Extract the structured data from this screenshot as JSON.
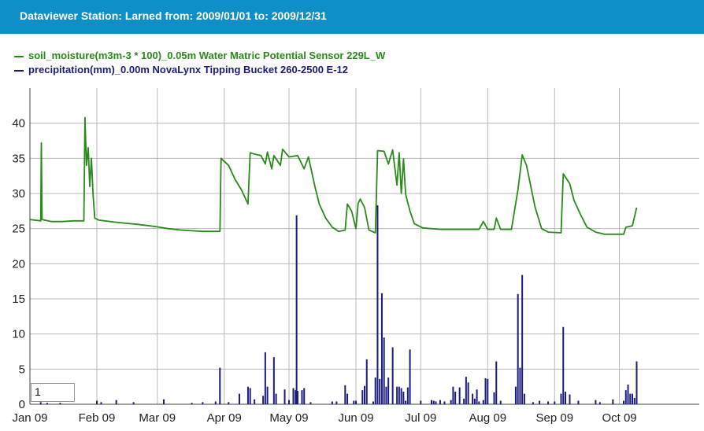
{
  "header": {
    "title": "Dataviewer Station: Larned from: 2009/01/01 to: 2009/12/31"
  },
  "zoom_input": {
    "value": "1"
  },
  "chart_data": {
    "type": "line",
    "title": "",
    "legend_placement": "top-left",
    "grid": true,
    "xlabel": "",
    "ylabel": "",
    "ylim": [
      0,
      45
    ],
    "xlim": [
      0,
      310
    ],
    "x_ticks": [
      {
        "label": "Jan 09",
        "day": 0
      },
      {
        "label": "Feb 09",
        "day": 31
      },
      {
        "label": "Mar 09",
        "day": 59
      },
      {
        "label": "Apr 09",
        "day": 90
      },
      {
        "label": "May 09",
        "day": 120
      },
      {
        "label": "Jun 09",
        "day": 151
      },
      {
        "label": "Jul 09",
        "day": 181
      },
      {
        "label": "Aug 09",
        "day": 212
      },
      {
        "label": "Sep 09",
        "day": 243
      },
      {
        "label": "Oct 09",
        "day": 273
      }
    ],
    "y_ticks": [
      0,
      5,
      10,
      15,
      20,
      25,
      30,
      35,
      40
    ],
    "series": [
      {
        "name": "soil_moisture(m3m-3 * 100)_0.05m Water Matric Potential Sensor 229L_W",
        "color": "#2a8a1c",
        "kind": "line",
        "points": [
          [
            0,
            26.3
          ],
          [
            5,
            26.1
          ],
          [
            5.3,
            37.2
          ],
          [
            5.6,
            26.3
          ],
          [
            10,
            26.0
          ],
          [
            15,
            26.0
          ],
          [
            20,
            26.1
          ],
          [
            25,
            26.1
          ],
          [
            25.5,
            40.8
          ],
          [
            26.2,
            34
          ],
          [
            27,
            36.5
          ],
          [
            27.7,
            31
          ],
          [
            28.5,
            35
          ],
          [
            29.2,
            30
          ],
          [
            30,
            26.5
          ],
          [
            32,
            26.2
          ],
          [
            40,
            25.9
          ],
          [
            50,
            25.6
          ],
          [
            58,
            25.3
          ],
          [
            64,
            25.0
          ],
          [
            70,
            24.8
          ],
          [
            80,
            24.6
          ],
          [
            88,
            24.6
          ],
          [
            88.5,
            35
          ],
          [
            92,
            34
          ],
          [
            95,
            32
          ],
          [
            98,
            30.5
          ],
          [
            101,
            28.5
          ],
          [
            102,
            35.8
          ],
          [
            104,
            35.6
          ],
          [
            107,
            35.4
          ],
          [
            109,
            34.2
          ],
          [
            110,
            35.9
          ],
          [
            112,
            33.5
          ],
          [
            113,
            35.4
          ],
          [
            116,
            34
          ],
          [
            117,
            36.3
          ],
          [
            120,
            35.2
          ],
          [
            124,
            35.4
          ],
          [
            127,
            33.5
          ],
          [
            129,
            35.2
          ],
          [
            132,
            31
          ],
          [
            134,
            28.5
          ],
          [
            137,
            26.5
          ],
          [
            140,
            25.2
          ],
          [
            143,
            24.6
          ],
          [
            146,
            24.8
          ],
          [
            147,
            28.5
          ],
          [
            149,
            27.5
          ],
          [
            151,
            25
          ],
          [
            152,
            28.6
          ],
          [
            153,
            29.2
          ],
          [
            155,
            28
          ],
          [
            157,
            24.8
          ],
          [
            160,
            24.4
          ],
          [
            161,
            36.1
          ],
          [
            164,
            36
          ],
          [
            166,
            34.2
          ],
          [
            168,
            36.2
          ],
          [
            170,
            31.2
          ],
          [
            171,
            35.8
          ],
          [
            172,
            30
          ],
          [
            173,
            34.9
          ],
          [
            174,
            29.9
          ],
          [
            175,
            28.7
          ],
          [
            176,
            27.5
          ],
          [
            178,
            25.7
          ],
          [
            182,
            25.1
          ],
          [
            190,
            24.9
          ],
          [
            200,
            24.9
          ],
          [
            208,
            24.9
          ],
          [
            210,
            26
          ],
          [
            212,
            24.9
          ],
          [
            215,
            24.9
          ],
          [
            216,
            26.5
          ],
          [
            218,
            24.9
          ],
          [
            223,
            24.9
          ],
          [
            226,
            30.5
          ],
          [
            228,
            35.5
          ],
          [
            230,
            34
          ],
          [
            232,
            31
          ],
          [
            234,
            28
          ],
          [
            237,
            25
          ],
          [
            240,
            24.5
          ],
          [
            246,
            24.4
          ],
          [
            247,
            32.8
          ],
          [
            250,
            31.4
          ],
          [
            252,
            29
          ],
          [
            255,
            27
          ],
          [
            258,
            25.2
          ],
          [
            262,
            24.5
          ],
          [
            266,
            24.2
          ],
          [
            272,
            24.2
          ],
          [
            275,
            24.2
          ],
          [
            276,
            25.2
          ],
          [
            279,
            25.4
          ],
          [
            281,
            28
          ]
        ]
      },
      {
        "name": "precipitation(mm)_0.00m NovaLynx Tipping Bucket 260-2500 E-12",
        "color": "#1c1c7c",
        "kind": "bars",
        "points": [
          [
            5,
            0.3
          ],
          [
            8,
            0.2
          ],
          [
            14,
            0.2
          ],
          [
            31,
            0.5
          ],
          [
            33,
            0.3
          ],
          [
            40,
            0.6
          ],
          [
            48,
            0.3
          ],
          [
            62,
            0.7
          ],
          [
            75,
            0.2
          ],
          [
            80,
            0.3
          ],
          [
            86,
            0.4
          ],
          [
            88,
            5.2
          ],
          [
            92,
            0.3
          ],
          [
            97,
            1.5
          ],
          [
            101,
            2.5
          ],
          [
            102,
            2.3
          ],
          [
            104,
            0.7
          ],
          [
            108,
            1.2
          ],
          [
            109,
            7.4
          ],
          [
            110,
            2.5
          ],
          [
            113,
            6.7
          ],
          [
            114,
            1.5
          ],
          [
            118,
            2.1
          ],
          [
            120,
            0.6
          ],
          [
            122,
            2.3
          ],
          [
            123,
            2.0
          ],
          [
            124,
            1.9
          ],
          [
            126,
            2.0
          ],
          [
            127,
            2.3
          ],
          [
            130,
            0.3
          ],
          [
            123.5,
            26.9
          ],
          [
            140,
            0.4
          ],
          [
            142,
            0.4
          ],
          [
            146,
            2.7
          ],
          [
            147,
            1.5
          ],
          [
            150,
            0.5
          ],
          [
            151,
            0.5
          ],
          [
            154,
            2.0
          ],
          [
            155,
            2.6
          ],
          [
            156,
            6.4
          ],
          [
            159,
            0.4
          ],
          [
            160,
            3.8
          ],
          [
            161,
            28.3
          ],
          [
            162,
            3.6
          ],
          [
            163,
            15.8
          ],
          [
            164,
            9.5
          ],
          [
            165,
            2.5
          ],
          [
            166,
            3.8
          ],
          [
            168,
            8.1
          ],
          [
            170,
            2.5
          ],
          [
            171,
            2.5
          ],
          [
            172,
            2.3
          ],
          [
            173,
            1.8
          ],
          [
            174,
            0.5
          ],
          [
            175,
            2.4
          ],
          [
            176,
            7.8
          ],
          [
            181,
            0.5
          ],
          [
            186,
            0.6
          ],
          [
            187,
            0.5
          ],
          [
            188,
            0.4
          ],
          [
            190,
            0.6
          ],
          [
            192,
            0.4
          ],
          [
            195,
            0.6
          ],
          [
            196,
            2.5
          ],
          [
            197,
            1.8
          ],
          [
            199,
            2.4
          ],
          [
            201,
            0.8
          ],
          [
            202,
            3.9
          ],
          [
            203,
            3.1
          ],
          [
            205,
            1.5
          ],
          [
            206,
            0.8
          ],
          [
            207,
            2.1
          ],
          [
            208,
            0.4
          ],
          [
            210,
            0.6
          ],
          [
            211,
            3.7
          ],
          [
            212,
            3.6
          ],
          [
            215,
            1.7
          ],
          [
            216,
            6.1
          ],
          [
            218,
            0.5
          ],
          [
            225,
            2.5
          ],
          [
            226,
            15.7
          ],
          [
            227,
            5.2
          ],
          [
            228,
            18.4
          ],
          [
            229,
            1.5
          ],
          [
            233,
            0.3
          ],
          [
            236,
            0.5
          ],
          [
            240,
            0.4
          ],
          [
            243,
            0.4
          ],
          [
            246,
            1.5
          ],
          [
            247,
            11.0
          ],
          [
            248,
            1.8
          ],
          [
            250,
            1.4
          ],
          [
            254,
            0.5
          ],
          [
            262,
            0.6
          ],
          [
            264,
            0.3
          ],
          [
            270,
            0.7
          ],
          [
            275,
            0.5
          ],
          [
            276,
            2.0
          ],
          [
            277,
            2.8
          ],
          [
            278,
            1.5
          ],
          [
            279,
            1.5
          ],
          [
            280,
            0.9
          ],
          [
            281,
            6.1
          ]
        ]
      }
    ]
  }
}
